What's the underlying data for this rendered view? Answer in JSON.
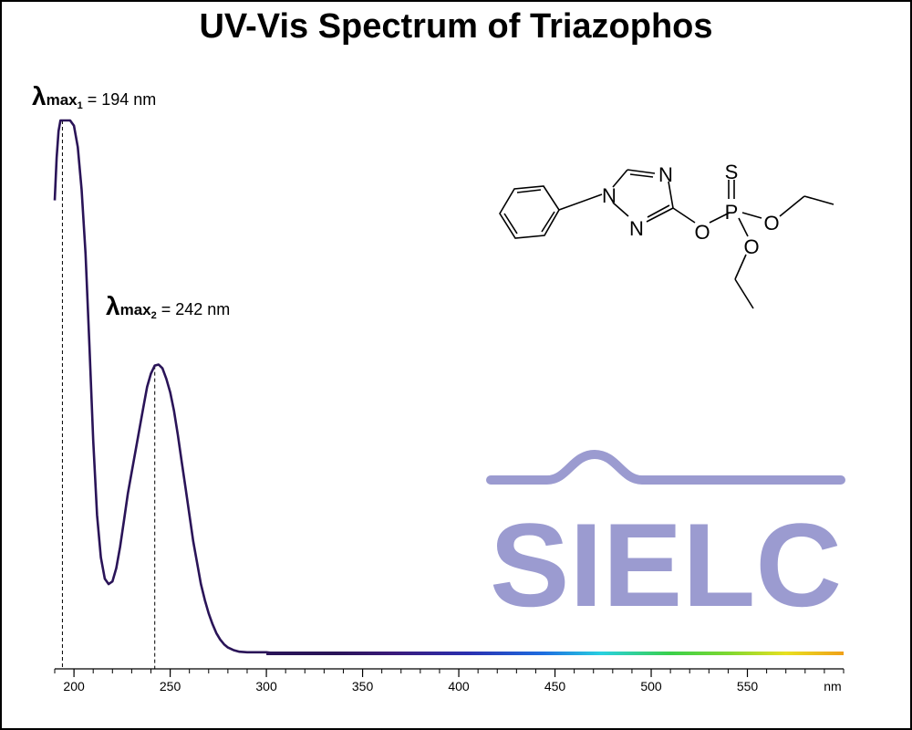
{
  "chart_data": {
    "type": "line",
    "title": "UV-Vis Spectrum of Triazophos",
    "xlabel": "",
    "ylabel": "",
    "x_unit": "nm",
    "xlim": [
      190,
      600
    ],
    "ylim": [
      0,
      1
    ],
    "y_axis_shown": false,
    "x_ticks": [
      200,
      250,
      300,
      350,
      400,
      450,
      500,
      550
    ],
    "grid": false,
    "series": [
      {
        "color": "#2a1458",
        "x": [
          190,
          191,
          192,
          193,
          194,
          195,
          196,
          197,
          198,
          200,
          202,
          204,
          206,
          208,
          210,
          212,
          214,
          216,
          218,
          220,
          222,
          224,
          226,
          228,
          230,
          232,
          234,
          236,
          238,
          240,
          242,
          244,
          246,
          248,
          250,
          252,
          254,
          256,
          258,
          260,
          262,
          264,
          266,
          268,
          270,
          272,
          274,
          276,
          278,
          280,
          283,
          286,
          290,
          295,
          300,
          305,
          310,
          600
        ],
        "y": [
          0.85,
          0.93,
          0.98,
          1.0,
          1.0,
          1.0,
          1.0,
          1.0,
          1.0,
          0.99,
          0.95,
          0.87,
          0.75,
          0.58,
          0.4,
          0.26,
          0.18,
          0.14,
          0.13,
          0.135,
          0.16,
          0.2,
          0.25,
          0.3,
          0.34,
          0.38,
          0.42,
          0.46,
          0.5,
          0.525,
          0.54,
          0.542,
          0.535,
          0.515,
          0.49,
          0.455,
          0.41,
          0.36,
          0.31,
          0.26,
          0.21,
          0.17,
          0.13,
          0.1,
          0.075,
          0.055,
          0.038,
          0.026,
          0.017,
          0.011,
          0.006,
          0.003,
          0.002,
          0.002,
          0.002,
          0.0,
          0.0,
          0.0
        ]
      }
    ],
    "annotations": [
      {
        "symbol": "λ",
        "sub": "max",
        "index": "1",
        "text": " = 194 nm",
        "x": 194
      },
      {
        "symbol": "λ",
        "sub": "max",
        "index": "2",
        "text": " = 242 nm",
        "x": 242
      }
    ],
    "spectrum_baseline": {
      "from": 300,
      "to": 600
    }
  },
  "molecule": {
    "atoms": {
      "n1": "N",
      "n2": "N",
      "n4": "N",
      "o_ester": "O",
      "p": "P",
      "s": "S",
      "o_ethyl1": "O",
      "o_ethyl2": "O"
    }
  },
  "watermark": {
    "text": "SIELC",
    "color": "#9b9bd0"
  }
}
